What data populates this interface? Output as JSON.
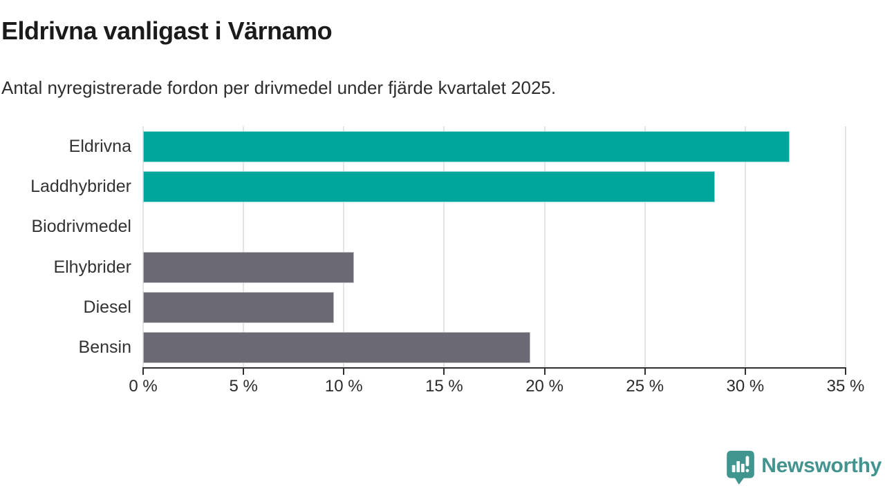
{
  "header": {
    "title": "Eldrivna vanligast i Värnamo",
    "subtitle": "Antal nyregistrerade fordon per drivmedel under fjärde kvartalet 2025."
  },
  "chart_data": {
    "type": "bar",
    "orientation": "horizontal",
    "title": "Eldrivna vanligast i Värnamo",
    "subtitle": "Antal nyregistrerade fordon per drivmedel under fjärde kvartalet 2025.",
    "categories": [
      "Eldrivna",
      "Laddhybrider",
      "Biodrivmedel",
      "Elhybrider",
      "Diesel",
      "Bensin"
    ],
    "values": [
      32.2,
      28.5,
      0,
      10.5,
      9.5,
      19.3
    ],
    "bar_colors": [
      "#00a69c",
      "#00a69c",
      "#00a69c",
      "#6b6973",
      "#6b6973",
      "#6b6973"
    ],
    "xlabel": "",
    "ylabel": "",
    "xlim": [
      0,
      35
    ],
    "x_tick_values": [
      0,
      5,
      10,
      15,
      20,
      25,
      30,
      35
    ],
    "x_tick_labels": [
      "0 %",
      "5 %",
      "10 %",
      "15 %",
      "20 %",
      "25 %",
      "30 %",
      "35 %"
    ],
    "grid": "vertical-only",
    "legend": "none",
    "colors": {
      "accent_teal": "#00a69c",
      "muted_gray": "#6b6973",
      "gridline": "#e4e4e4",
      "axis": "#303030",
      "text": "#333333"
    }
  },
  "footer": {
    "brand": "Newsworthy",
    "brand_color": "#43948f"
  }
}
